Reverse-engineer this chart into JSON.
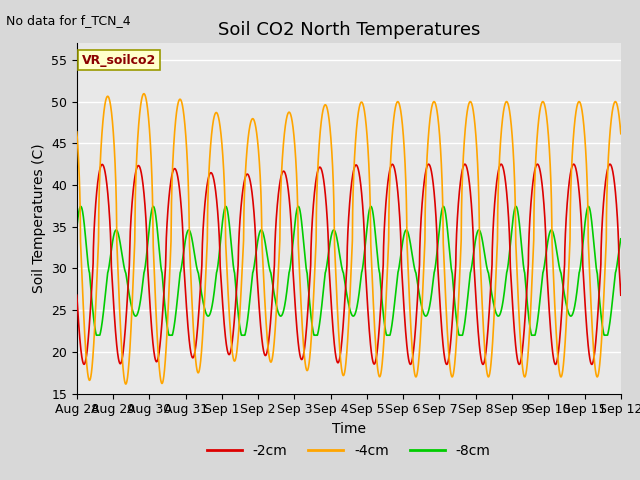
{
  "title": "Soil CO2 North Temperatures",
  "xlabel": "Time",
  "ylabel": "Soil Temperatures (C)",
  "note": "No data for f_TCN_4",
  "legend_label": "VR_soilco2",
  "ylim": [
    15,
    57
  ],
  "xlim_days": [
    0,
    15
  ],
  "series": {
    "-2cm": {
      "color": "#dd0000",
      "linewidth": 1.2
    },
    "-4cm": {
      "color": "#ffa500",
      "linewidth": 1.2
    },
    "-8cm": {
      "color": "#00cc00",
      "linewidth": 1.2
    }
  },
  "tick_labels": [
    "Aug 28",
    "Aug 29",
    "Aug 30",
    "Aug 31",
    "Sep 1",
    "Sep 2",
    "Sep 3",
    "Sep 4",
    "Sep 5",
    "Sep 6",
    "Sep 7",
    "Sep 8",
    "Sep 9",
    "Sep 10",
    "Sep 11",
    "Sep 12"
  ],
  "yticks": [
    15,
    20,
    25,
    30,
    35,
    40,
    45,
    50,
    55
  ],
  "background_color": "#d8d8d8",
  "plot_bg_color": "#e8e8e8",
  "grid_color": "#ffffff",
  "legend_box_color": "#ffffcc",
  "legend_box_edge": "#999900",
  "title_fontsize": 13,
  "axis_label_fontsize": 10,
  "tick_fontsize": 9
}
